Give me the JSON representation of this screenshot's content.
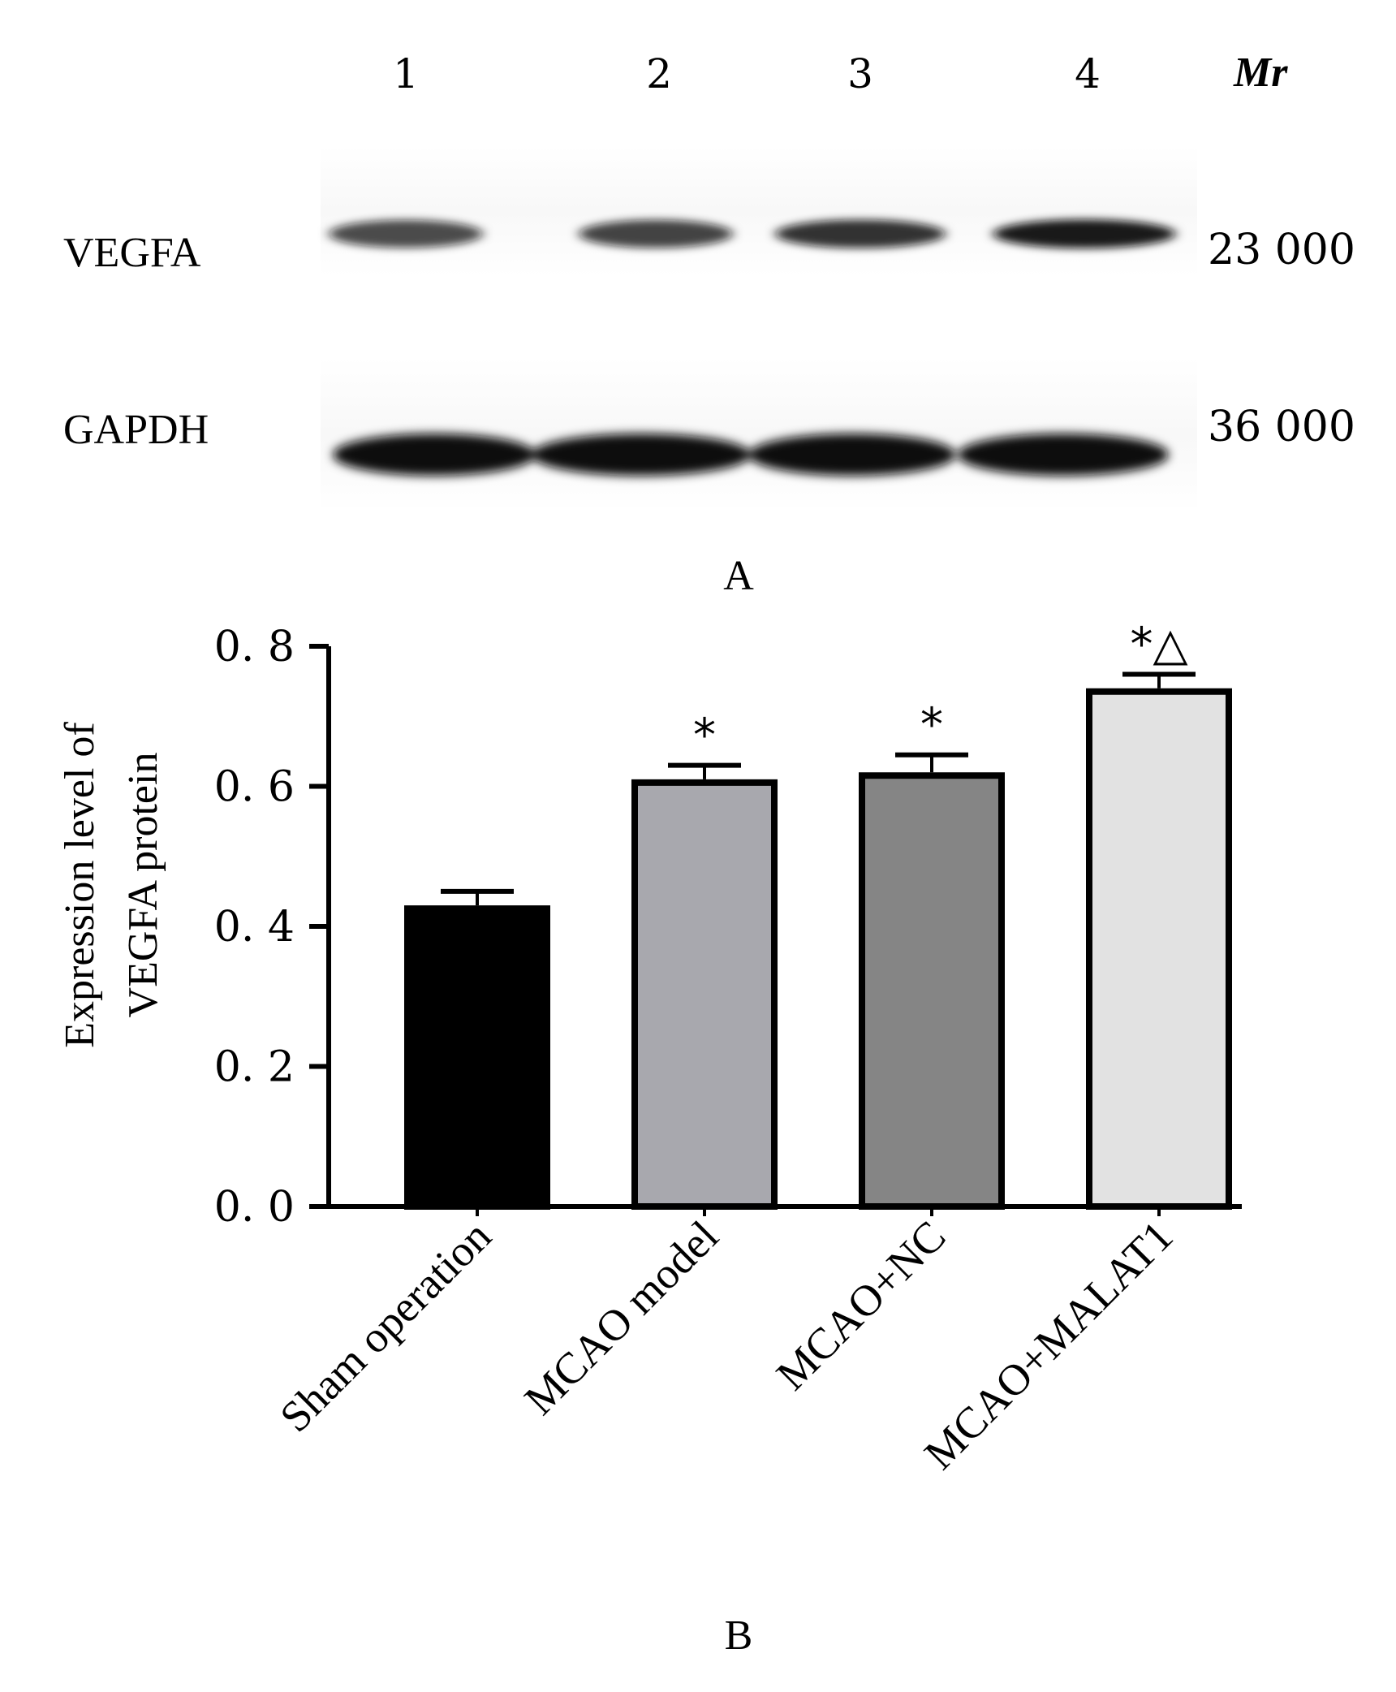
{
  "panel_a": {
    "lanes": [
      "1",
      "2",
      "3",
      "4"
    ],
    "mr_label": "Mr",
    "bands": [
      {
        "name": "VEGFA",
        "mw": "23  000",
        "intensity": [
          0.75,
          0.78,
          0.85,
          0.95
        ]
      },
      {
        "name": "GAPDH",
        "mw": "36  000",
        "intensity": [
          1.0,
          1.0,
          1.0,
          1.0
        ]
      }
    ],
    "panel_label": "A"
  },
  "panel_b": {
    "panel_label": "B"
  },
  "chart_data": {
    "type": "bar",
    "categories": [
      "Sham operation",
      "MCAO model",
      "MCAO+NC",
      "MCAO+MALAT1"
    ],
    "values": [
      0.43,
      0.61,
      0.62,
      0.74
    ],
    "errors": [
      0.02,
      0.02,
      0.025,
      0.02
    ],
    "annotations": [
      "",
      "*",
      "*",
      "*△"
    ],
    "bar_colors": [
      "#000000",
      "#a8a8ae",
      "#858585",
      "#e2e2e2"
    ],
    "ylabel_lines": [
      "Expression level of",
      "VEGFA protein"
    ],
    "ylim": [
      0,
      0.8
    ],
    "yticks": [
      "0. 0",
      "0. 2",
      "0. 4",
      "0. 6",
      "0. 8"
    ],
    "ytick_values": [
      0,
      0.2,
      0.4,
      0.6,
      0.8
    ],
    "grid": false
  }
}
